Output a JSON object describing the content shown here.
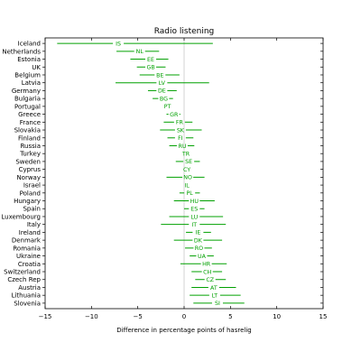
{
  "chart_data": {
    "type": "errorbar",
    "title": "Radio listening",
    "xlabel": "Difference in percentage points of hasrelig",
    "ylabel": "",
    "xlim": [
      -15,
      15
    ],
    "xticks": [
      -15,
      -10,
      -5,
      0,
      5,
      10,
      15
    ],
    "xtick_labels": [
      "−15",
      "−10",
      "−5",
      "0",
      "5",
      "10",
      "15"
    ],
    "reference_line_x": 0,
    "grid": false,
    "series_color": "#00a000",
    "reference_line_color": "#c8c8c8",
    "points": [
      {
        "country": "Iceland",
        "code": "IS",
        "estimate": -7.1,
        "low": -13.7,
        "high": 3.1
      },
      {
        "country": "Netherlands",
        "code": "NL",
        "estimate": -4.8,
        "low": -7.3,
        "high": -2.7
      },
      {
        "country": "Estonia",
        "code": "EE",
        "estimate": -3.6,
        "low": -5.8,
        "high": -1.7
      },
      {
        "country": "UK",
        "code": "GB",
        "estimate": -3.6,
        "low": -5.1,
        "high": -2.0
      },
      {
        "country": "Belgium",
        "code": "BE",
        "estimate": -2.6,
        "low": -4.8,
        "high": -0.5
      },
      {
        "country": "Latvia",
        "code": "LV",
        "estimate": -2.4,
        "low": -7.4,
        "high": 2.7
      },
      {
        "country": "Germany",
        "code": "DE",
        "estimate": -2.4,
        "low": -3.9,
        "high": -0.8
      },
      {
        "country": "Bulgaria",
        "code": "BG",
        "estimate": -2.2,
        "low": -3.4,
        "high": -1.2
      },
      {
        "country": "Portugal",
        "code": "PT",
        "estimate": -1.8,
        "low": -2.3,
        "high": -1.3
      },
      {
        "country": "Greece",
        "code": "GR",
        "estimate": -1.1,
        "low": -1.9,
        "high": -0.4
      },
      {
        "country": "France",
        "code": "FR",
        "estimate": -0.5,
        "low": -2.2,
        "high": 0.9
      },
      {
        "country": "Slovakia",
        "code": "SK",
        "estimate": -0.4,
        "low": -2.6,
        "high": 1.9
      },
      {
        "country": "Finland",
        "code": "FI",
        "estimate": -0.4,
        "low": -1.8,
        "high": 1.0
      },
      {
        "country": "Russia",
        "code": "RU",
        "estimate": -0.2,
        "low": -1.6,
        "high": 1.1
      },
      {
        "country": "Turkey",
        "code": "TR",
        "estimate": 0.2,
        "low": 0.2,
        "high": 0.2
      },
      {
        "country": "Sweden",
        "code": "SE",
        "estimate": 0.5,
        "low": -0.9,
        "high": 1.7
      },
      {
        "country": "Cyprus",
        "code": "CY",
        "estimate": 0.3,
        "low": 0.3,
        "high": 0.3
      },
      {
        "country": "Norway",
        "code": "NO",
        "estimate": 0.4,
        "low": -1.9,
        "high": 2.2
      },
      {
        "country": "Israel",
        "code": "IL",
        "estimate": 0.3,
        "low": 0.3,
        "high": 0.3
      },
      {
        "country": "Poland",
        "code": "PL",
        "estimate": 0.6,
        "low": -0.5,
        "high": 1.7
      },
      {
        "country": "Hungary",
        "code": "HU",
        "estimate": 1.1,
        "low": -1.1,
        "high": 3.3
      },
      {
        "country": "Spain",
        "code": "ES",
        "estimate": 1.1,
        "low": 0.0,
        "high": 2.2
      },
      {
        "country": "Luxembourg",
        "code": "LU",
        "estimate": 1.1,
        "low": -1.6,
        "high": 4.2
      },
      {
        "country": "Italy",
        "code": "IT",
        "estimate": 1.1,
        "low": -2.5,
        "high": 4.5
      },
      {
        "country": "Ireland",
        "code": "IE",
        "estimate": 1.5,
        "low": 0.2,
        "high": 2.9
      },
      {
        "country": "Denmark",
        "code": "DK",
        "estimate": 1.5,
        "low": -1.1,
        "high": 4.1
      },
      {
        "country": "Romania",
        "code": "RO",
        "estimate": 1.6,
        "low": 0.1,
        "high": 3.0
      },
      {
        "country": "Ukraine",
        "code": "UA",
        "estimate": 1.9,
        "low": 0.6,
        "high": 3.2
      },
      {
        "country": "Croatia",
        "code": "HR",
        "estimate": 2.4,
        "low": -0.4,
        "high": 4.6
      },
      {
        "country": "Switzerland",
        "code": "CH",
        "estimate": 2.5,
        "low": 0.8,
        "high": 4.1
      },
      {
        "country": "Czech Rep",
        "code": "CZ",
        "estimate": 2.8,
        "low": 1.2,
        "high": 4.5
      },
      {
        "country": "Austria",
        "code": "AT",
        "estimate": 3.2,
        "low": 0.8,
        "high": 5.6
      },
      {
        "country": "Lithuania",
        "code": "LT",
        "estimate": 3.3,
        "low": 0.6,
        "high": 6.1
      },
      {
        "country": "Slovenia",
        "code": "SI",
        "estimate": 3.6,
        "low": 1.0,
        "high": 6.5
      }
    ]
  }
}
